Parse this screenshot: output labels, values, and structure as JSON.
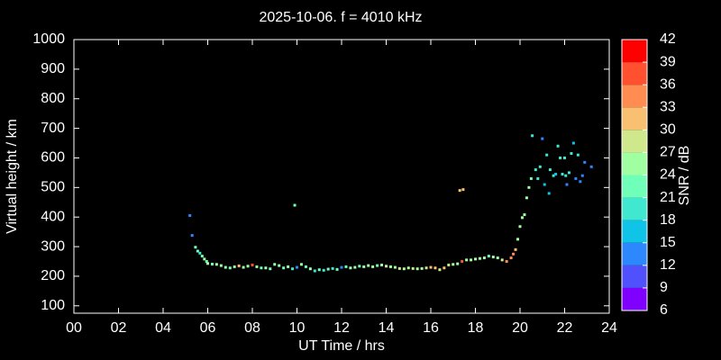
{
  "chart_data": {
    "type": "scatter",
    "title": "2025-10-06. f = 4010 kHz",
    "xlabel": "UT Time / hrs",
    "ylabel": "Virtual height / km",
    "x": [
      5.2,
      5.3,
      5.45,
      5.55,
      5.65,
      5.75,
      5.85,
      5.95,
      6.0,
      6.2,
      6.4,
      6.6,
      6.8,
      7.0,
      7.2,
      7.4,
      7.6,
      7.8,
      8.0,
      8.2,
      8.4,
      8.6,
      8.8,
      9.0,
      9.2,
      9.4,
      9.6,
      9.8,
      9.9,
      10.0,
      10.2,
      10.4,
      10.6,
      10.8,
      11.0,
      11.2,
      11.4,
      11.6,
      11.8,
      12.0,
      12.2,
      12.4,
      12.6,
      12.8,
      13.0,
      13.2,
      13.4,
      13.6,
      13.8,
      14.0,
      14.2,
      14.4,
      14.6,
      14.8,
      15.0,
      15.2,
      15.4,
      15.6,
      15.8,
      16.0,
      16.2,
      16.4,
      16.6,
      16.8,
      17.0,
      17.2,
      17.3,
      17.4,
      17.45,
      17.6,
      17.8,
      18.0,
      18.2,
      18.4,
      18.6,
      18.8,
      19.0,
      19.2,
      19.4,
      19.6,
      19.7,
      19.8,
      19.9,
      20.0,
      20.1,
      20.2,
      20.3,
      20.4,
      20.5,
      20.55,
      20.7,
      20.8,
      20.9,
      21.0,
      21.1,
      21.2,
      21.3,
      21.35,
      21.5,
      21.6,
      21.7,
      21.8,
      21.9,
      22.0,
      22.05,
      22.1,
      22.2,
      22.3,
      22.4,
      22.5,
      22.6,
      22.7,
      22.8,
      22.9,
      23.2
    ],
    "values": [
      405,
      338,
      298,
      285,
      278,
      268,
      258,
      250,
      243,
      241,
      240,
      236,
      230,
      228,
      232,
      235,
      230,
      234,
      238,
      232,
      228,
      228,
      225,
      240,
      236,
      228,
      232,
      225,
      440,
      230,
      240,
      232,
      225,
      218,
      222,
      220,
      224,
      226,
      223,
      230,
      232,
      228,
      230,
      234,
      232,
      236,
      232,
      236,
      238,
      234,
      232,
      230,
      226,
      225,
      228,
      226,
      225,
      226,
      228,
      230,
      228,
      222,
      228,
      238,
      240,
      242,
      490,
      250,
      493,
      255,
      255,
      258,
      260,
      262,
      268,
      265,
      262,
      255,
      250,
      262,
      275,
      290,
      325,
      368,
      398,
      408,
      465,
      500,
      530,
      675,
      560,
      530,
      570,
      665,
      510,
      610,
      480,
      560,
      540,
      545,
      640,
      600,
      545,
      600,
      540,
      510,
      550,
      615,
      650,
      530,
      610,
      520,
      540,
      585,
      570
    ],
    "snr": [
      14,
      14,
      22,
      22,
      20,
      22,
      24,
      22,
      24,
      22,
      24,
      26,
      24,
      22,
      24,
      30,
      24,
      26,
      38,
      24,
      22,
      24,
      22,
      24,
      26,
      22,
      24,
      20,
      21,
      14,
      24,
      22,
      24,
      20,
      22,
      20,
      22,
      20,
      22,
      14,
      22,
      24,
      26,
      22,
      24,
      26,
      24,
      22,
      26,
      28,
      24,
      26,
      28,
      24,
      26,
      28,
      24,
      26,
      28,
      32,
      30,
      28,
      30,
      28,
      26,
      24,
      30,
      36,
      30,
      26,
      24,
      26,
      24,
      26,
      22,
      24,
      26,
      28,
      34,
      34,
      34,
      32,
      26,
      26,
      26,
      24,
      24,
      24,
      22,
      18,
      20,
      18,
      18,
      14,
      16,
      18,
      16,
      18,
      18,
      16,
      20,
      20,
      18,
      18,
      18,
      14,
      18,
      18,
      16,
      14,
      18,
      14,
      14,
      14,
      12
    ],
    "xlim": [
      0,
      24
    ],
    "xticks": [
      {
        "value": 0,
        "label": "00"
      },
      {
        "value": 2,
        "label": "02"
      },
      {
        "value": 4,
        "label": "04"
      },
      {
        "value": 6,
        "label": "06"
      },
      {
        "value": 8,
        "label": "08"
      },
      10,
      12,
      14,
      16,
      18,
      20,
      22,
      24
    ],
    "ylim": [
      75,
      1000
    ],
    "yticks": [
      100,
      200,
      300,
      400,
      500,
      600,
      700,
      800,
      900,
      1000
    ],
    "colorbar": {
      "label": "SNR / dB",
      "lim": [
        6,
        42
      ],
      "ticks": [
        6,
        9,
        12,
        15,
        18,
        21,
        24,
        27,
        30,
        33,
        36,
        39,
        42
      ],
      "colors": [
        "#8000ff",
        "#5050fc",
        "#2c88fc",
        "#10c4e8",
        "#40e8d0",
        "#70ffb8",
        "#a0ffa0",
        "#d0e88c",
        "#f8c070",
        "#ff8c50",
        "#ff5030",
        "#ff0000"
      ]
    }
  }
}
